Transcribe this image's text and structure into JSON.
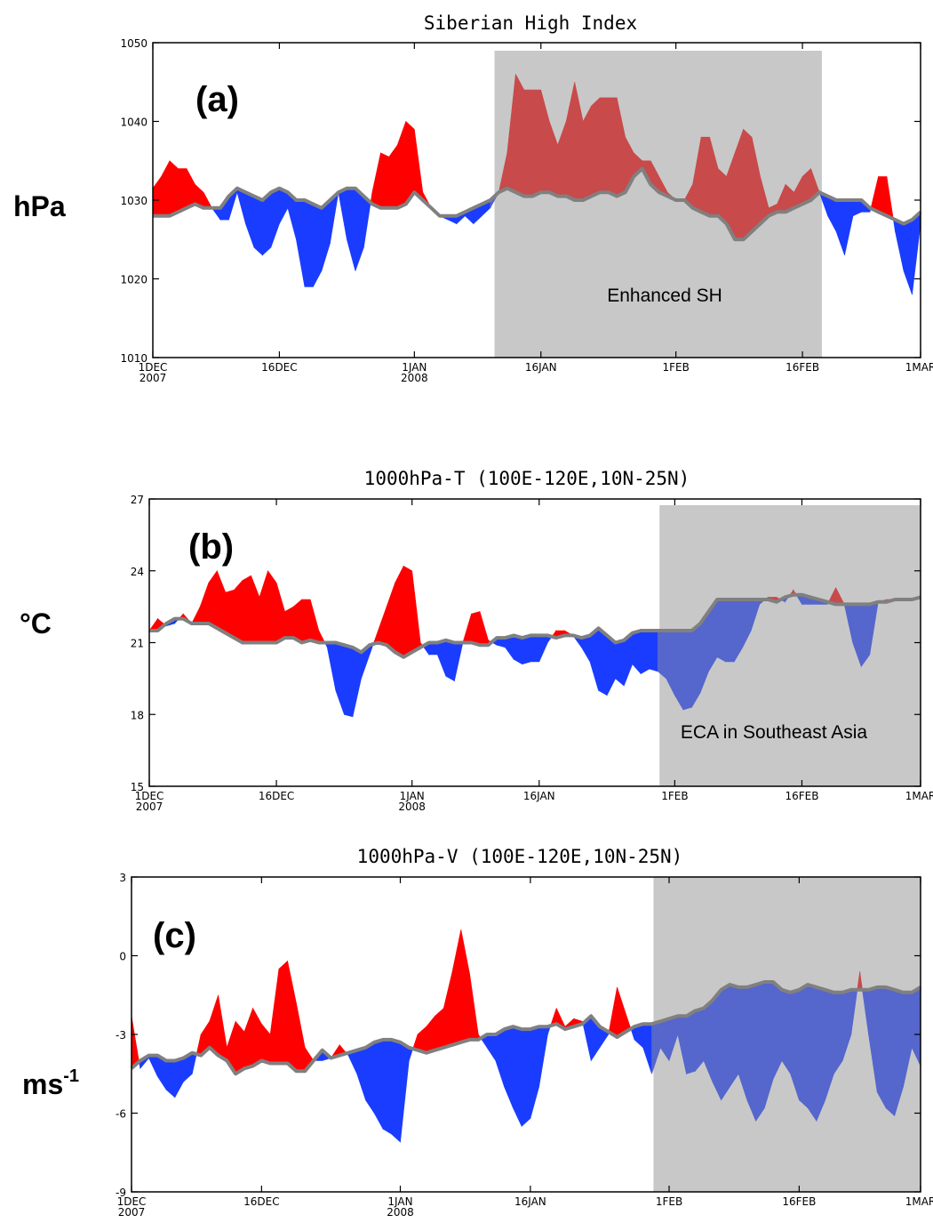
{
  "chart_data": [
    {
      "type": "area",
      "title": "Siberian High Index",
      "panel_label": "(a)",
      "ylabel": "hPa",
      "ylim": [
        1010,
        1050
      ],
      "yticks": [
        1010,
        1020,
        1030,
        1040,
        1050
      ],
      "xlim": [
        0,
        91
      ],
      "x_ticks": [
        {
          "x": 0,
          "line1": "1DEC",
          "line2": "2007"
        },
        {
          "x": 15,
          "line1": "16DEC",
          "line2": ""
        },
        {
          "x": 31,
          "line1": "1JAN",
          "line2": "2008"
        },
        {
          "x": 46,
          "line1": "16JAN",
          "line2": ""
        },
        {
          "x": 62,
          "line1": "1FEB",
          "line2": ""
        },
        {
          "x": 77,
          "line1": "16FEB",
          "line2": ""
        },
        {
          "x": 91,
          "line1": "1MAR",
          "line2": ""
        }
      ],
      "shade": {
        "x0": 40.5,
        "x1": 79.3,
        "label": "Enhanced SH"
      },
      "colors": {
        "above": "#ff0000",
        "below": "#1a3cff",
        "above_shaded": "#c84a4a",
        "below_shaded": "#5566cc",
        "line": "#808080",
        "shade": "#c8c8c8"
      },
      "x": [
        0,
        1,
        2,
        3,
        4,
        5,
        6,
        7,
        8,
        9,
        10,
        11,
        12,
        13,
        14,
        15,
        16,
        17,
        18,
        19,
        20,
        21,
        22,
        23,
        24,
        25,
        26,
        27,
        28,
        29,
        30,
        31,
        32,
        33,
        34,
        35,
        36,
        37,
        38,
        39,
        40,
        41,
        42,
        43,
        44,
        45,
        46,
        47,
        48,
        49,
        50,
        51,
        52,
        53,
        54,
        55,
        56,
        57,
        58,
        59,
        60,
        61,
        62,
        63,
        64,
        65,
        66,
        67,
        68,
        69,
        70,
        71,
        72,
        73,
        74,
        75,
        76,
        77,
        78,
        79,
        80,
        81,
        82,
        83,
        84,
        85,
        86,
        87,
        88,
        89,
        90,
        91
      ],
      "base": [
        1028,
        1028,
        1028,
        1028.5,
        1029,
        1029.5,
        1029,
        1029,
        1029,
        1030.5,
        1031.5,
        1031,
        1030.5,
        1030,
        1031,
        1031.5,
        1031,
        1030,
        1030,
        1029.5,
        1029,
        1030,
        1031,
        1031.5,
        1031.5,
        1030.5,
        1029.5,
        1029,
        1029,
        1029,
        1029.5,
        1031,
        1030,
        1029,
        1028,
        1028,
        1028,
        1028.5,
        1029,
        1029.5,
        1030,
        1031,
        1031.5,
        1031,
        1030.5,
        1030.5,
        1031,
        1031,
        1030.5,
        1030.5,
        1030,
        1030,
        1030.5,
        1031,
        1031,
        1030.5,
        1031,
        1033,
        1034,
        1032,
        1031,
        1030.5,
        1030,
        1030,
        1029,
        1028.5,
        1028,
        1028,
        1027,
        1025,
        1025,
        1026,
        1027,
        1028,
        1028.5,
        1028.5,
        1029,
        1029.5,
        1030,
        1031,
        1030.5,
        1030,
        1030,
        1030,
        1030,
        1029,
        1028.5,
        1028,
        1027.5,
        1027,
        1027.5,
        1028.5
      ],
      "y": [
        1031.5,
        1033,
        1035,
        1034,
        1034,
        1032,
        1031,
        1029,
        1027.5,
        1027.5,
        1031,
        1027,
        1024,
        1023,
        1024,
        1027,
        1029,
        1025,
        1019,
        1019,
        1021,
        1024.5,
        1031,
        1025,
        1021,
        1024,
        1031,
        1036,
        1035.5,
        1037,
        1040,
        1039,
        1031,
        1029,
        1028,
        1027.5,
        1027,
        1028,
        1027,
        1028,
        1029,
        1031,
        1036,
        1046,
        1044,
        1044,
        1044,
        1040,
        1037,
        1040,
        1045,
        1040,
        1042,
        1043,
        1043,
        1043,
        1038,
        1036,
        1035,
        1035,
        1033,
        1031,
        1030,
        1030,
        1032,
        1038,
        1038,
        1034,
        1033,
        1036,
        1039,
        1038,
        1033,
        1029,
        1029.5,
        1032,
        1031,
        1033,
        1034,
        1031,
        1028,
        1026,
        1023,
        1028,
        1028.5,
        1028.5,
        1033,
        1033,
        1026,
        1021,
        1018,
        1027
      ]
    },
    {
      "type": "area",
      "title": "1000hPa-T (100E-120E,10N-25N)",
      "panel_label": "(b)",
      "ylabel": "°C",
      "ylim": [
        15,
        27
      ],
      "yticks": [
        15,
        18,
        21,
        24,
        27
      ],
      "xlim": [
        0,
        91
      ],
      "x_ticks": [
        {
          "x": 0,
          "line1": "1DEC",
          "line2": "2007"
        },
        {
          "x": 15,
          "line1": "16DEC",
          "line2": ""
        },
        {
          "x": 31,
          "line1": "1JAN",
          "line2": "2008"
        },
        {
          "x": 46,
          "line1": "16JAN",
          "line2": ""
        },
        {
          "x": 62,
          "line1": "1FEB",
          "line2": ""
        },
        {
          "x": 77,
          "line1": "16FEB",
          "line2": ""
        },
        {
          "x": 91,
          "line1": "1MAR",
          "line2": ""
        }
      ],
      "shade": {
        "x0": 60.2,
        "x1": 91.0,
        "label": "ECA in Southeast Asia"
      },
      "colors": {
        "above": "#ff0000",
        "below": "#1a3cff",
        "above_shaded": "#c84a4a",
        "below_shaded": "#5566cc",
        "line": "#808080",
        "shade": "#c8c8c8"
      },
      "x": [
        0,
        1,
        2,
        3,
        4,
        5,
        6,
        7,
        8,
        9,
        10,
        11,
        12,
        13,
        14,
        15,
        16,
        17,
        18,
        19,
        20,
        21,
        22,
        23,
        24,
        25,
        26,
        27,
        28,
        29,
        30,
        31,
        32,
        33,
        34,
        35,
        36,
        37,
        38,
        39,
        40,
        41,
        42,
        43,
        44,
        45,
        46,
        47,
        48,
        49,
        50,
        51,
        52,
        53,
        54,
        55,
        56,
        57,
        58,
        59,
        60,
        61,
        62,
        63,
        64,
        65,
        66,
        67,
        68,
        69,
        70,
        71,
        72,
        73,
        74,
        75,
        76,
        77,
        78,
        79,
        80,
        81,
        82,
        83,
        84,
        85,
        86,
        87,
        88,
        89,
        90,
        91
      ],
      "base": [
        21.5,
        21.5,
        21.8,
        22,
        22,
        21.8,
        21.8,
        21.8,
        21.6,
        21.4,
        21.2,
        21,
        21,
        21,
        21,
        21,
        21.2,
        21.2,
        21,
        21.1,
        21,
        21,
        21,
        20.9,
        20.8,
        20.6,
        20.9,
        21,
        20.9,
        20.6,
        20.4,
        20.6,
        20.8,
        21,
        21,
        21.1,
        21,
        21,
        21,
        20.9,
        20.9,
        21.2,
        21.2,
        21.3,
        21.2,
        21.3,
        21.3,
        21.3,
        21.2,
        21.3,
        21.3,
        21.2,
        21.3,
        21.6,
        21.3,
        21.0,
        21.1,
        21.4,
        21.5,
        21.5,
        21.5,
        21.5,
        21.5,
        21.5,
        21.5,
        21.8,
        22.3,
        22.8,
        22.8,
        22.8,
        22.8,
        22.8,
        22.8,
        22.8,
        22.7,
        22.9,
        23,
        23,
        22.9,
        22.8,
        22.7,
        22.6,
        22.6,
        22.6,
        22.6,
        22.6,
        22.7,
        22.7,
        22.8,
        22.8,
        22.8,
        22.9
      ],
      "y": [
        21.5,
        22.0,
        21.7,
        21.8,
        22.2,
        21.8,
        22.5,
        23.5,
        24.0,
        23.1,
        23.2,
        23.6,
        23.8,
        22.9,
        24.0,
        23.5,
        22.3,
        22.5,
        22.8,
        22.8,
        21.5,
        20.8,
        19.0,
        18.0,
        17.9,
        19.5,
        20.5,
        21.5,
        22.5,
        23.5,
        24.2,
        24.0,
        21.0,
        20.5,
        20.5,
        19.6,
        19.4,
        21.0,
        22.2,
        22.3,
        21.1,
        20.9,
        20.8,
        20.3,
        20.1,
        20.2,
        20.2,
        21.0,
        21.5,
        21.5,
        21.3,
        20.8,
        20.2,
        19.0,
        18.8,
        19.5,
        19.2,
        20.1,
        19.7,
        19.9,
        19.8,
        19.5,
        18.8,
        18.2,
        18.3,
        18.9,
        19.8,
        20.4,
        20.2,
        20.2,
        20.8,
        21.5,
        22.6,
        22.9,
        22.9,
        22.7,
        23.2,
        22.6,
        22.6,
        22.6,
        22.6,
        23.3,
        22.6,
        21.0,
        20.0,
        20.5,
        22.7,
        22.8,
        22.8,
        22.8,
        22.8,
        22.9
      ]
    },
    {
      "type": "area",
      "title": "1000hPa-V (100E-120E,10N-25N)",
      "panel_label": "(c)",
      "ylabel": "ms-1",
      "ylim": [
        -9,
        3
      ],
      "yticks": [
        -9,
        -6,
        -3,
        0,
        3
      ],
      "xlim": [
        0,
        91
      ],
      "x_ticks": [
        {
          "x": 0,
          "line1": "1DEC",
          "line2": "2007"
        },
        {
          "x": 15,
          "line1": "16DEC",
          "line2": ""
        },
        {
          "x": 31,
          "line1": "1JAN",
          "line2": "2008"
        },
        {
          "x": 46,
          "line1": "16JAN",
          "line2": ""
        },
        {
          "x": 62,
          "line1": "1FEB",
          "line2": ""
        },
        {
          "x": 77,
          "line1": "16FEB",
          "line2": ""
        },
        {
          "x": 91,
          "line1": "1MAR",
          "line2": ""
        }
      ],
      "shade": {
        "x0": 60.2,
        "x1": 91.0,
        "label": ""
      },
      "colors": {
        "above": "#ff0000",
        "below": "#1a3cff",
        "above_shaded": "#c84a4a",
        "below_shaded": "#5566cc",
        "line": "#808080",
        "shade": "#c8c8c8"
      },
      "x": [
        0,
        1,
        2,
        3,
        4,
        5,
        6,
        7,
        8,
        9,
        10,
        11,
        12,
        13,
        14,
        15,
        16,
        17,
        18,
        19,
        20,
        21,
        22,
        23,
        24,
        25,
        26,
        27,
        28,
        29,
        30,
        31,
        32,
        33,
        34,
        35,
        36,
        37,
        38,
        39,
        40,
        41,
        42,
        43,
        44,
        45,
        46,
        47,
        48,
        49,
        50,
        51,
        52,
        53,
        54,
        55,
        56,
        57,
        58,
        59,
        60,
        61,
        62,
        63,
        64,
        65,
        66,
        67,
        68,
        69,
        70,
        71,
        72,
        73,
        74,
        75,
        76,
        77,
        78,
        79,
        80,
        81,
        82,
        83,
        84,
        85,
        86,
        87,
        88,
        89,
        90,
        91
      ],
      "base": [
        -4.3,
        -4,
        -3.8,
        -3.8,
        -4,
        -4,
        -3.9,
        -3.7,
        -3.8,
        -3.5,
        -3.8,
        -4.0,
        -4.5,
        -4.3,
        -4.2,
        -4.0,
        -4.1,
        -4.1,
        -4.1,
        -4.4,
        -4.4,
        -4.0,
        -3.6,
        -3.9,
        -3.8,
        -3.7,
        -3.6,
        -3.5,
        -3.3,
        -3.2,
        -3.2,
        -3.3,
        -3.5,
        -3.6,
        -3.7,
        -3.6,
        -3.5,
        -3.4,
        -3.3,
        -3.2,
        -3.2,
        -3.0,
        -3.0,
        -2.8,
        -2.7,
        -2.8,
        -2.8,
        -2.7,
        -2.7,
        -2.6,
        -2.8,
        -2.7,
        -2.6,
        -2.3,
        -2.7,
        -2.9,
        -3.1,
        -2.9,
        -2.7,
        -2.6,
        -2.6,
        -2.5,
        -2.4,
        -2.3,
        -2.3,
        -2.1,
        -2.0,
        -1.7,
        -1.3,
        -1.1,
        -1.2,
        -1.2,
        -1.1,
        -1.0,
        -1.0,
        -1.3,
        -1.4,
        -1.3,
        -1.1,
        -1.2,
        -1.3,
        -1.4,
        -1.4,
        -1.3,
        -1.3,
        -1.3,
        -1.2,
        -1.2,
        -1.3,
        -1.4,
        -1.4,
        -1.2
      ],
      "y": [
        -2.3,
        -4.3,
        -3.9,
        -4.6,
        -5.1,
        -5.4,
        -4.8,
        -4.5,
        -3.0,
        -2.5,
        -1.5,
        -3.5,
        -2.5,
        -2.9,
        -2.0,
        -2.6,
        -3.0,
        -0.5,
        -0.2,
        -1.8,
        -3.5,
        -4.0,
        -4.0,
        -3.9,
        -3.4,
        -3.8,
        -4.5,
        -5.5,
        -6.0,
        -6.6,
        -6.8,
        -7.1,
        -4.0,
        -3.0,
        -2.7,
        -2.3,
        -2.0,
        -0.6,
        1.0,
        -0.7,
        -3.0,
        -3.5,
        -4.0,
        -5.0,
        -5.8,
        -6.5,
        -6.2,
        -5.0,
        -3.0,
        -2.0,
        -2.7,
        -2.4,
        -2.5,
        -4.0,
        -3.5,
        -3.0,
        -1.2,
        -2.2,
        -3.2,
        -3.5,
        -4.5,
        -3.5,
        -4.0,
        -3.0,
        -4.5,
        -4.4,
        -4.0,
        -4.8,
        -5.5,
        -5.0,
        -4.5,
        -5.5,
        -6.3,
        -5.8,
        -4.7,
        -4.0,
        -4.5,
        -5.5,
        -5.8,
        -6.3,
        -5.5,
        -4.5,
        -4.0,
        -3.0,
        -0.6,
        -3.0,
        -5.2,
        -5.8,
        -6.1,
        -5.0,
        -3.5,
        -4.2
      ]
    }
  ]
}
